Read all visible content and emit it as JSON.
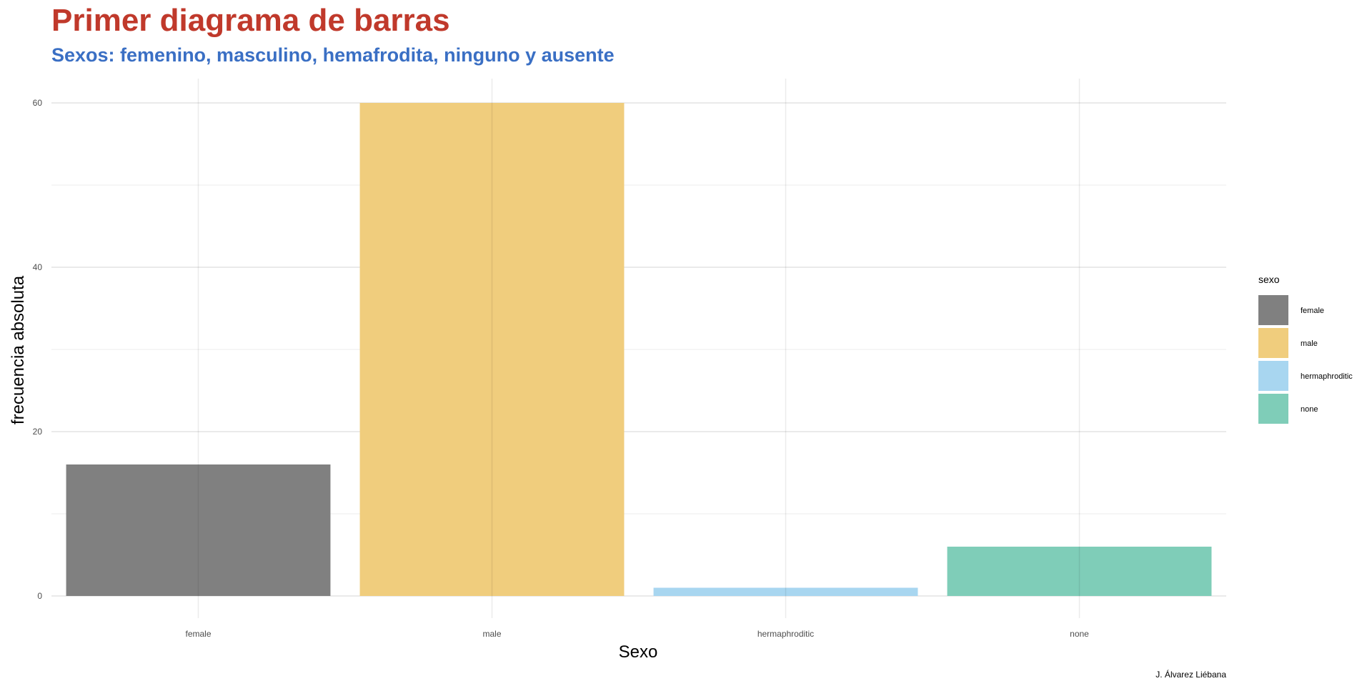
{
  "chart_data": {
    "type": "bar",
    "title": "Primer diagrama de barras",
    "subtitle": "Sexos: femenino, masculino, hemafrodita, ninguno y ausente",
    "xlabel": "Sexo",
    "ylabel": "frecuencia absoluta",
    "categories": [
      "female",
      "male",
      "hermaphroditic",
      "none"
    ],
    "values": [
      16,
      60,
      1,
      6
    ],
    "colors": [
      "#808080",
      "#f0cd7d",
      "#a8d6f0",
      "#7fcdb8"
    ],
    "ylim": [
      0,
      63
    ],
    "yticks": [
      0,
      20,
      40,
      60
    ],
    "yticks_minor": [
      10,
      30,
      50
    ],
    "grid": true,
    "legend": {
      "title": "sexo",
      "position": "right",
      "entries": [
        "female",
        "male",
        "hermaphroditic",
        "none"
      ]
    },
    "caption": "J. Álvarez Liébana"
  }
}
